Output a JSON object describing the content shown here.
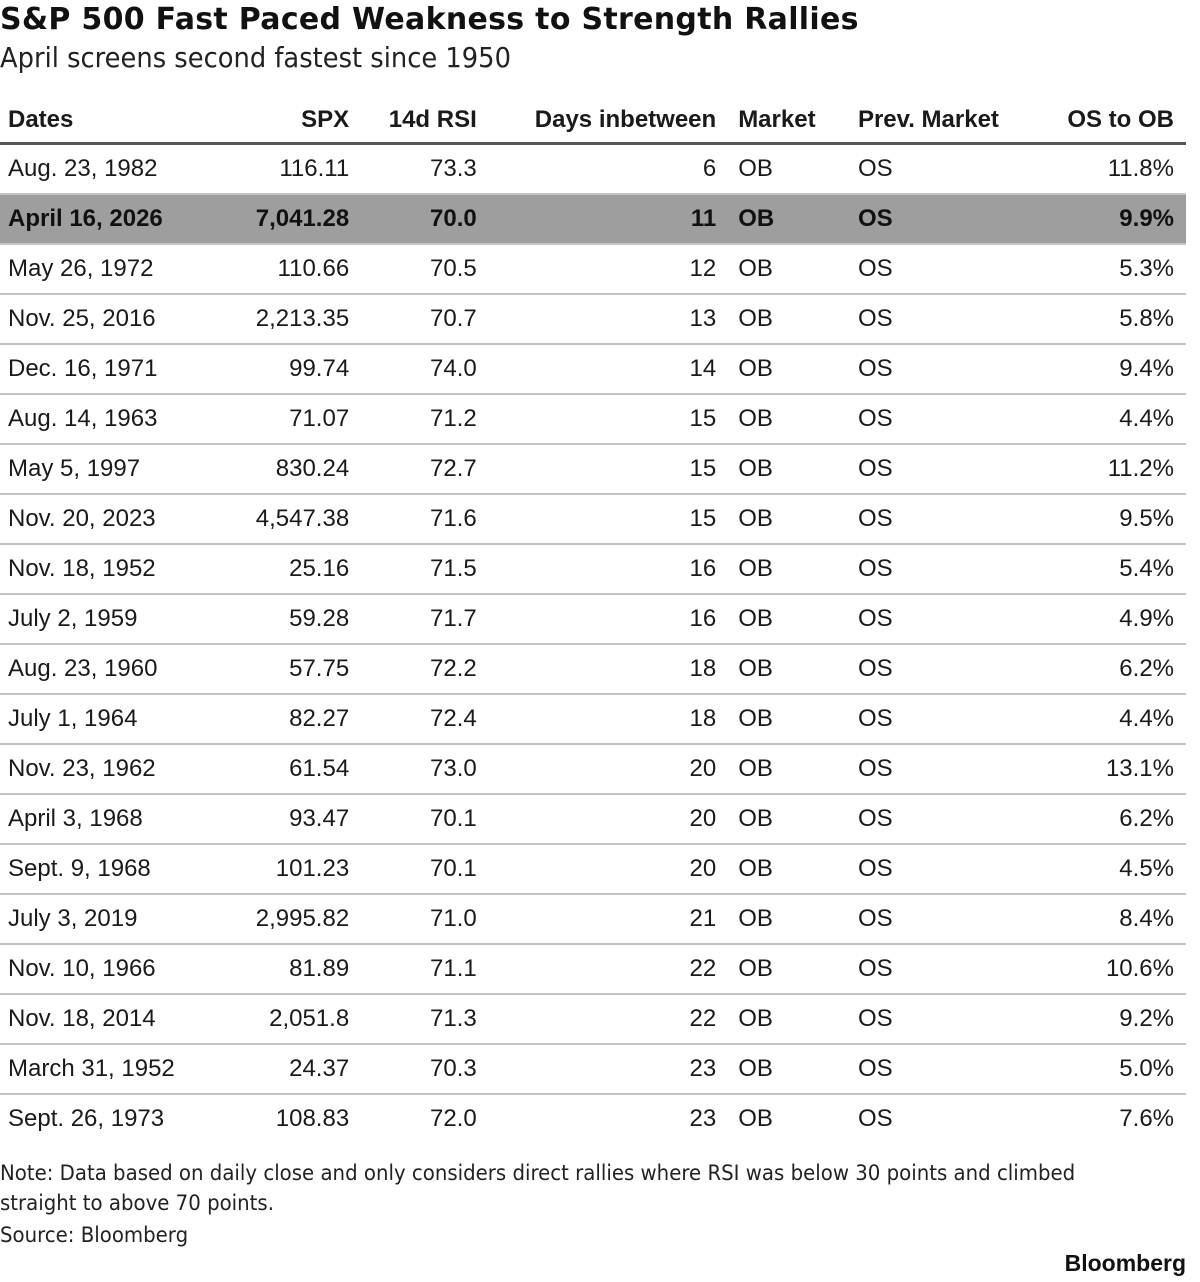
{
  "header": {
    "title": "S&P 500 Fast Paced Weakness to Strength Rallies",
    "subtitle": "April screens second fastest since 1950"
  },
  "table": {
    "columns": [
      "Dates",
      "SPX",
      "14d RSI",
      "Days inbetween",
      "Market",
      "Prev. Market",
      "OS to OB"
    ],
    "highlight_color": "#9e9e9e",
    "rows": [
      {
        "date": "Aug. 23, 1982",
        "spx": "116.11",
        "rsi": "73.3",
        "days": "6",
        "market": "OB",
        "prev": "OS",
        "os_to_ob": "11.8%"
      },
      {
        "date": "April 16, 2026",
        "spx": "7,041.28",
        "rsi": "70.0",
        "days": "11",
        "market": "OB",
        "prev": "OS",
        "os_to_ob": "9.9%",
        "highlighted": true
      },
      {
        "date": "May 26, 1972",
        "spx": "110.66",
        "rsi": "70.5",
        "days": "12",
        "market": "OB",
        "prev": "OS",
        "os_to_ob": "5.3%"
      },
      {
        "date": "Nov. 25, 2016",
        "spx": "2,213.35",
        "rsi": "70.7",
        "days": "13",
        "market": "OB",
        "prev": "OS",
        "os_to_ob": "5.8%"
      },
      {
        "date": "Dec. 16, 1971",
        "spx": "99.74",
        "rsi": "74.0",
        "days": "14",
        "market": "OB",
        "prev": "OS",
        "os_to_ob": "9.4%"
      },
      {
        "date": "Aug. 14, 1963",
        "spx": "71.07",
        "rsi": "71.2",
        "days": "15",
        "market": "OB",
        "prev": "OS",
        "os_to_ob": "4.4%"
      },
      {
        "date": "May 5, 1997",
        "spx": "830.24",
        "rsi": "72.7",
        "days": "15",
        "market": "OB",
        "prev": "OS",
        "os_to_ob": "11.2%"
      },
      {
        "date": "Nov. 20, 2023",
        "spx": "4,547.38",
        "rsi": "71.6",
        "days": "15",
        "market": "OB",
        "prev": "OS",
        "os_to_ob": "9.5%"
      },
      {
        "date": "Nov. 18, 1952",
        "spx": "25.16",
        "rsi": "71.5",
        "days": "16",
        "market": "OB",
        "prev": "OS",
        "os_to_ob": "5.4%"
      },
      {
        "date": "July 2, 1959",
        "spx": "59.28",
        "rsi": "71.7",
        "days": "16",
        "market": "OB",
        "prev": "OS",
        "os_to_ob": "4.9%"
      },
      {
        "date": "Aug. 23, 1960",
        "spx": "57.75",
        "rsi": "72.2",
        "days": "18",
        "market": "OB",
        "prev": "OS",
        "os_to_ob": "6.2%"
      },
      {
        "date": "July 1, 1964",
        "spx": "82.27",
        "rsi": "72.4",
        "days": "18",
        "market": "OB",
        "prev": "OS",
        "os_to_ob": "4.4%"
      },
      {
        "date": "Nov. 23, 1962",
        "spx": "61.54",
        "rsi": "73.0",
        "days": "20",
        "market": "OB",
        "prev": "OS",
        "os_to_ob": "13.1%"
      },
      {
        "date": "April 3, 1968",
        "spx": "93.47",
        "rsi": "70.1",
        "days": "20",
        "market": "OB",
        "prev": "OS",
        "os_to_ob": "6.2%"
      },
      {
        "date": "Sept. 9, 1968",
        "spx": "101.23",
        "rsi": "70.1",
        "days": "20",
        "market": "OB",
        "prev": "OS",
        "os_to_ob": "4.5%"
      },
      {
        "date": "July 3, 2019",
        "spx": "2,995.82",
        "rsi": "71.0",
        "days": "21",
        "market": "OB",
        "prev": "OS",
        "os_to_ob": "8.4%"
      },
      {
        "date": "Nov. 10, 1966",
        "spx": "81.89",
        "rsi": "71.1",
        "days": "22",
        "market": "OB",
        "prev": "OS",
        "os_to_ob": "10.6%"
      },
      {
        "date": "Nov. 18, 2014",
        "spx": "2,051.8",
        "rsi": "71.3",
        "days": "22",
        "market": "OB",
        "prev": "OS",
        "os_to_ob": "9.2%"
      },
      {
        "date": "March 31, 1952",
        "spx": "24.37",
        "rsi": "70.3",
        "days": "23",
        "market": "OB",
        "prev": "OS",
        "os_to_ob": "5.0%"
      },
      {
        "date": "Sept. 26, 1973",
        "spx": "108.83",
        "rsi": "72.0",
        "days": "23",
        "market": "OB",
        "prev": "OS",
        "os_to_ob": "7.6%"
      }
    ]
  },
  "footer": {
    "note": "Note: Data based on daily close and only considers direct rallies where RSI was below 30 points and climbed straight to above 70 points.",
    "source": "Source: Bloomberg",
    "brand": "Bloomberg"
  },
  "chart_data": {
    "type": "table",
    "title": "S&P 500 Fast Paced Weakness to Strength Rallies",
    "subtitle": "April screens second fastest since 1950",
    "columns": [
      "Dates",
      "SPX",
      "14d RSI",
      "Days inbetween",
      "Market",
      "Prev. Market",
      "OS to OB"
    ],
    "rows": [
      [
        "Aug. 23, 1982",
        116.11,
        73.3,
        6,
        "OB",
        "OS",
        "11.8%"
      ],
      [
        "April 16, 2026",
        7041.28,
        70.0,
        11,
        "OB",
        "OS",
        "9.9%"
      ],
      [
        "May 26, 1972",
        110.66,
        70.5,
        12,
        "OB",
        "OS",
        "5.3%"
      ],
      [
        "Nov. 25, 2016",
        2213.35,
        70.7,
        13,
        "OB",
        "OS",
        "5.8%"
      ],
      [
        "Dec. 16, 1971",
        99.74,
        74.0,
        14,
        "OB",
        "OS",
        "9.4%"
      ],
      [
        "Aug. 14, 1963",
        71.07,
        71.2,
        15,
        "OB",
        "OS",
        "4.4%"
      ],
      [
        "May 5, 1997",
        830.24,
        72.7,
        15,
        "OB",
        "OS",
        "11.2%"
      ],
      [
        "Nov. 20, 2023",
        4547.38,
        71.6,
        15,
        "OB",
        "OS",
        "9.5%"
      ],
      [
        "Nov. 18, 1952",
        25.16,
        71.5,
        16,
        "OB",
        "OS",
        "5.4%"
      ],
      [
        "July 2, 1959",
        59.28,
        71.7,
        16,
        "OB",
        "OS",
        "4.9%"
      ],
      [
        "Aug. 23, 1960",
        57.75,
        72.2,
        18,
        "OB",
        "OS",
        "6.2%"
      ],
      [
        "July 1, 1964",
        82.27,
        72.4,
        18,
        "OB",
        "OS",
        "4.4%"
      ],
      [
        "Nov. 23, 1962",
        61.54,
        73.0,
        20,
        "OB",
        "OS",
        "13.1%"
      ],
      [
        "April 3, 1968",
        93.47,
        70.1,
        20,
        "OB",
        "OS",
        "6.2%"
      ],
      [
        "Sept. 9, 1968",
        101.23,
        70.1,
        20,
        "OB",
        "OS",
        "4.5%"
      ],
      [
        "July 3, 2019",
        2995.82,
        71.0,
        21,
        "OB",
        "OS",
        "8.4%"
      ],
      [
        "Nov. 10, 1966",
        81.89,
        71.1,
        22,
        "OB",
        "OS",
        "10.6%"
      ],
      [
        "Nov. 18, 2014",
        2051.8,
        71.3,
        22,
        "OB",
        "OS",
        "9.2%"
      ],
      [
        "March 31, 1952",
        24.37,
        70.3,
        23,
        "OB",
        "OS",
        "5.0%"
      ],
      [
        "Sept. 26, 1973",
        108.83,
        72.0,
        23,
        "OB",
        "OS",
        "7.6%"
      ]
    ],
    "highlighted_row_index": 1,
    "note": "Note: Data based on daily close and only considers direct rallies where RSI was below 30 points and climbed straight to above 70 points.",
    "source": "Source: Bloomberg"
  }
}
